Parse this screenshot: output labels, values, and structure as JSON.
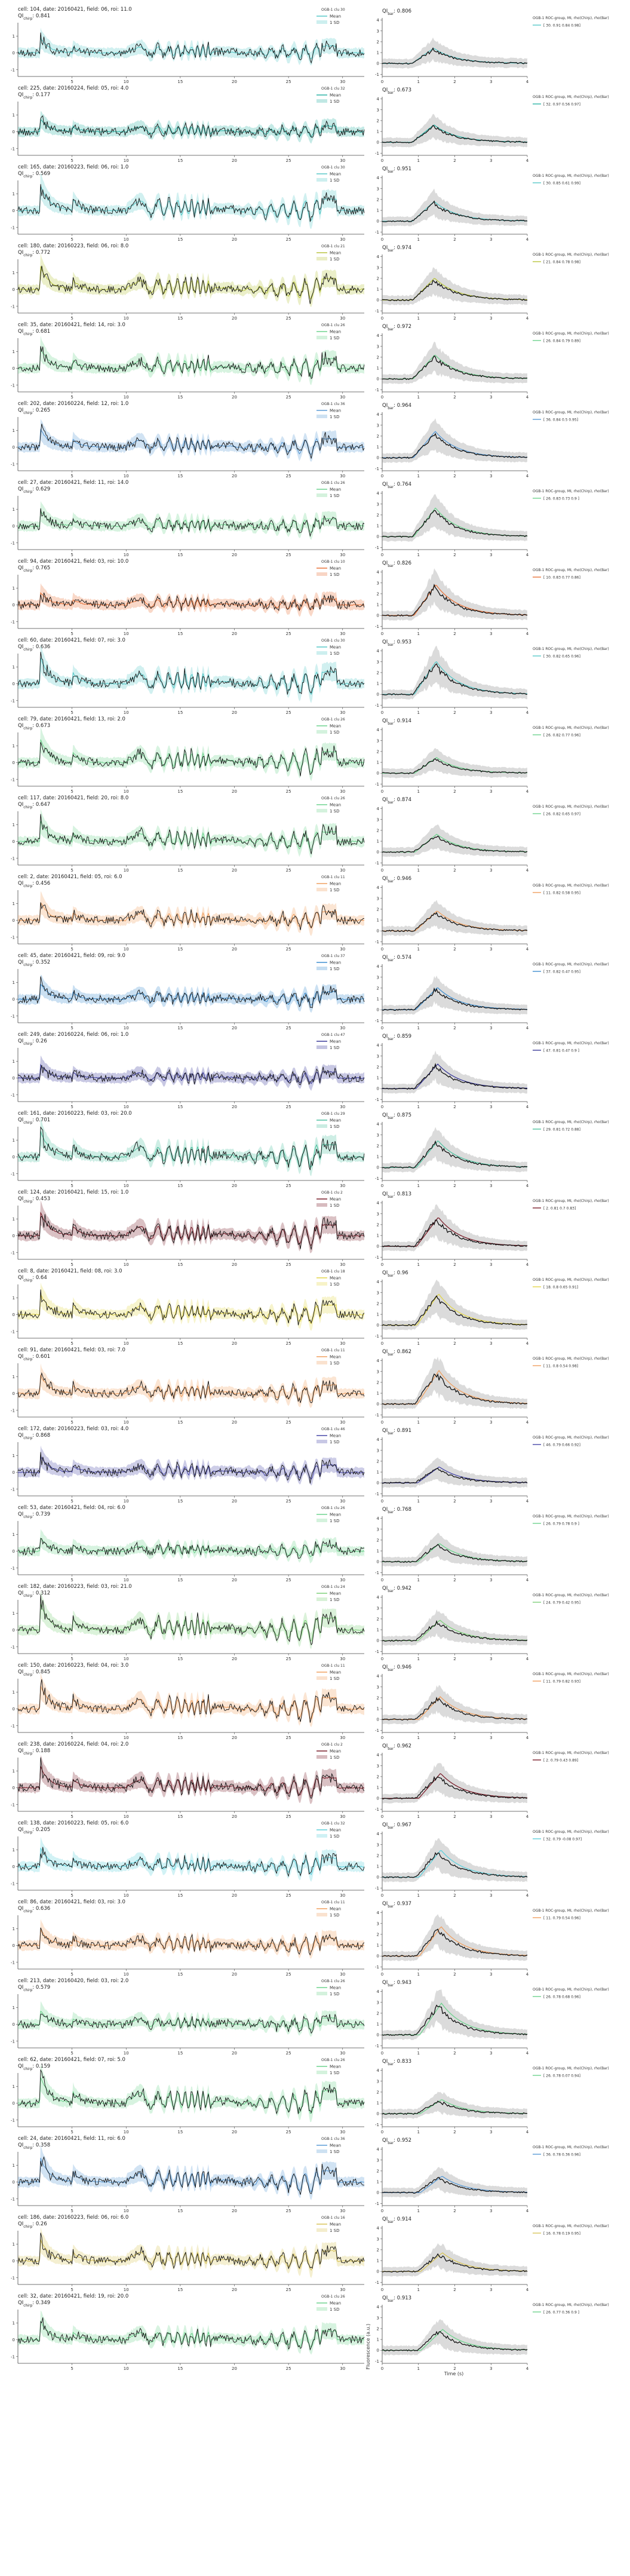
{
  "chart_data": {
    "type": "line",
    "global_ylabel": "Fluorescence (a.u.)",
    "global_xlabel": "Time (s)",
    "left_xticks": [
      5,
      10,
      15,
      20,
      25,
      30
    ],
    "right_xticks": [
      0,
      1,
      2,
      3,
      4
    ],
    "left_yticks": [
      -1,
      0,
      1
    ],
    "right_yticks": [
      -1,
      0,
      1,
      2,
      3,
      4
    ],
    "legend_mean_label": "Mean",
    "legend_sd_label": "1 SD",
    "right_legend_title": "OGB-1 ROC-group, MI, rho(Chirp), rho(Bar)",
    "qi_bar_label": "QI",
    "qi_bar_sub": "bar",
    "qi_chirp_label": "QI",
    "qi_chirp_sub": "chirp",
    "rows": [
      {
        "title": "cell: 104, date: 20160421, field: 06, roi: 11.0",
        "qi_chirp": "0.841",
        "group_label": "OGB-1 clu 30",
        "qi_bar": "0.806",
        "stats": "[ 30.   0.91  0.84  0.98]",
        "color": "#59c9c9"
      },
      {
        "title": "cell: 225, date: 20160224, field: 05, roi: 4.0",
        "qi_chirp": "0.177",
        "group_label": "OGB-1 clu 32",
        "qi_bar": "0.673",
        "stats": "[ 32.   0.97  0.56  0.97]",
        "color": "#2db3a5"
      },
      {
        "title": "cell: 165, date: 20160223, field: 06, roi: 1.0",
        "qi_chirp": "0.569",
        "group_label": "OGB-1 clu 30",
        "qi_bar": "0.951",
        "stats": "[ 30.   0.85  0.61  0.99]",
        "color": "#59c9c9"
      },
      {
        "title": "cell: 180, date: 20160223, field: 06, roi: 8.0",
        "qi_chirp": "0.772",
        "group_label": "OGB-1 clu 21",
        "qi_bar": "0.974",
        "stats": "[ 21.   0.84  0.78  0.98]",
        "color": "#b8c43e"
      },
      {
        "title": "cell: 35, date: 20160421, field: 14, roi: 3.0",
        "qi_chirp": "0.681",
        "group_label": "OGB-1 clu 26",
        "qi_bar": "0.972",
        "stats": "[ 26.   0.84  0.79  0.89]",
        "color": "#6fd38f"
      },
      {
        "title": "cell: 202, date: 20160224, field: 12, roi: 1.0",
        "qi_chirp": "0.265",
        "group_label": "OGB-1 clu 36",
        "qi_bar": "0.964",
        "stats": "[ 36.   0.84  0.5   0.95]",
        "color": "#5b9bd5"
      },
      {
        "title": "cell: 27, date: 20160421, field: 11, roi: 14.0",
        "qi_chirp": "0.629",
        "group_label": "OGB-1 clu 26",
        "qi_bar": "0.764",
        "stats": "[ 26.   0.83  0.73  0.9 ]",
        "color": "#6fd38f"
      },
      {
        "title": "cell: 94, date: 20160421, field: 03, roi: 10.0",
        "qi_chirp": "0.765",
        "group_label": "OGB-1 clu 10",
        "qi_bar": "0.826",
        "stats": "[ 10.   0.83  0.77  0.86]",
        "color": "#e8743b"
      },
      {
        "title": "cell: 60, date: 20160421, field: 07, roi: 3.0",
        "qi_chirp": "0.636",
        "group_label": "OGB-1 clu 30",
        "qi_bar": "0.953",
        "stats": "[ 30.   0.82  0.65  0.96]",
        "color": "#59c9c9"
      },
      {
        "title": "cell: 79, date: 20160421, field: 13, roi: 2.0",
        "qi_chirp": "0.673",
        "group_label": "OGB-1 clu 26",
        "qi_bar": "0.914",
        "stats": "[ 26.   0.82  0.77  0.96]",
        "color": "#6fd38f"
      },
      {
        "title": "cell: 117, date: 20160421, field: 20, roi: 8.0",
        "qi_chirp": "0.647",
        "group_label": "OGB-1 clu 26",
        "qi_bar": "0.874",
        "stats": "[ 26.   0.82  0.65  0.97]",
        "color": "#6fd38f"
      },
      {
        "title": "cell: 2, date: 20160421, field: 05, roi: 6.0",
        "qi_chirp": "0.456",
        "group_label": "OGB-1 clu 11",
        "qi_bar": "0.946",
        "stats": "[ 11.   0.82  0.58  0.95]",
        "color": "#f0a060"
      },
      {
        "title": "cell: 45, date: 20160421, field: 09, roi: 9.0",
        "qi_chirp": "0.352",
        "group_label": "OGB-1 clu 37",
        "qi_bar": "0.574",
        "stats": "[ 37.   0.82  0.47  0.95]",
        "color": "#3f8fd0"
      },
      {
        "title": "cell: 249, date: 20160224, field: 06, roi: 1.0",
        "qi_chirp": "0.26",
        "group_label": "OGB-1 clu 47",
        "qi_bar": "0.859",
        "stats": "[ 47.   0.81  0.47  0.9 ]",
        "color": "#3b3b9a"
      },
      {
        "title": "cell: 161, date: 20160223, field: 03, roi: 20.0",
        "qi_chirp": "0.701",
        "group_label": "OGB-1 clu 29",
        "qi_bar": "0.875",
        "stats": "[ 29.   0.81  0.72  0.88]",
        "color": "#4fc1a0"
      },
      {
        "title": "cell: 124, date: 20160421, field: 15, roi: 1.0",
        "qi_chirp": "0.453",
        "group_label": "OGB-1 clu 2",
        "qi_bar": "0.813",
        "stats": "[ 2.    0.81  0.7   0.83]",
        "color": "#7a1f2b"
      },
      {
        "title": "cell: 8, date: 20160421, field: 08, roi: 3.0",
        "qi_chirp": "0.64",
        "group_label": "OGB-1 clu 18",
        "qi_bar": "0.96",
        "stats": "[ 18.   0.8   0.65  0.91]",
        "color": "#e3d64a"
      },
      {
        "title": "cell: 91, date: 20160421, field: 03, roi: 7.0",
        "qi_chirp": "0.601",
        "group_label": "OGB-1 clu 11",
        "qi_bar": "0.862",
        "stats": "[ 11.   0.8   0.54  0.98]",
        "color": "#f0a060"
      },
      {
        "title": "cell: 172, date: 20160223, field: 03, roi: 4.0",
        "qi_chirp": "0.868",
        "group_label": "OGB-1 clu 46",
        "qi_bar": "0.891",
        "stats": "[ 46.   0.79  0.66  0.92]",
        "color": "#4a4aa8"
      },
      {
        "title": "cell: 53, date: 20160421, field: 04, roi: 6.0",
        "qi_chirp": "0.739",
        "group_label": "OGB-1 clu 26",
        "qi_bar": "0.768",
        "stats": "[ 26.   0.79  0.78  0.9 ]",
        "color": "#6fd38f"
      },
      {
        "title": "cell: 182, date: 20160223, field: 03, roi: 21.0",
        "qi_chirp": "0.312",
        "group_label": "OGB-1 clu 24",
        "qi_bar": "0.942",
        "stats": "[ 24.   0.79  0.42  0.95]",
        "color": "#7ed07a"
      },
      {
        "title": "cell: 150, date: 20160223, field: 04, roi: 3.0",
        "qi_chirp": "0.845",
        "group_label": "OGB-1 clu 11",
        "qi_bar": "0.946",
        "stats": "[ 11.   0.79  0.82  0.93]",
        "color": "#f0a060"
      },
      {
        "title": "cell: 238, date: 20160224, field: 04, roi: 2.0",
        "qi_chirp": "0.188",
        "group_label": "OGB-1 clu 2",
        "qi_bar": "0.962",
        "stats": "[ 2.    0.79  0.43  0.89]",
        "color": "#7a1f2b"
      },
      {
        "title": "cell: 138, date: 20160223, field: 05, roi: 6.0",
        "qi_chirp": "0.205",
        "group_label": "OGB-1 clu 32",
        "qi_bar": "0.967",
        "stats": "[ 32.   0.79  -0.08  0.97]",
        "color": "#5fd0dc"
      },
      {
        "title": "cell: 86, date: 20160421, field: 03, roi: 3.0",
        "qi_chirp": "0.636",
        "group_label": "OGB-1 clu 11",
        "qi_bar": "0.937",
        "stats": "[ 11.   0.79  0.54  0.96]",
        "color": "#f0a060"
      },
      {
        "title": "cell: 213, date: 20160420, field: 03, roi: 2.0",
        "qi_chirp": "0.579",
        "group_label": "OGB-1 clu 26",
        "qi_bar": "0.943",
        "stats": "[ 26.   0.78  0.68  0.96]",
        "color": "#6fd38f"
      },
      {
        "title": "cell: 62, date: 20160421, field: 07, roi: 5.0",
        "qi_chirp": "0.159",
        "group_label": "OGB-1 clu 26",
        "qi_bar": "0.833",
        "stats": "[ 26.   0.78  0.07  0.94]",
        "color": "#6fd38f"
      },
      {
        "title": "cell: 24, date: 20160421, field: 11, roi: 6.0",
        "qi_chirp": "0.358",
        "group_label": "OGB-1 clu 36",
        "qi_bar": "0.952",
        "stats": "[ 36.   0.78  0.36  0.96]",
        "color": "#5b9bd5"
      },
      {
        "title": "cell: 186, date: 20160223, field: 06, roi: 6.0",
        "qi_chirp": "0.26",
        "group_label": "OGB-1 clu 16",
        "qi_bar": "0.914",
        "stats": "[ 16.   0.78  0.19  0.95]",
        "color": "#d8c45a"
      },
      {
        "title": "cell: 32, date: 20160421, field: 19, roi: 20.0",
        "qi_chirp": "0.349",
        "group_label": "OGB-1 clu 26",
        "qi_bar": "0.913",
        "stats": "[ 26.   0.77  0.36  0.9 ]",
        "color": "#6fd38f"
      }
    ]
  }
}
